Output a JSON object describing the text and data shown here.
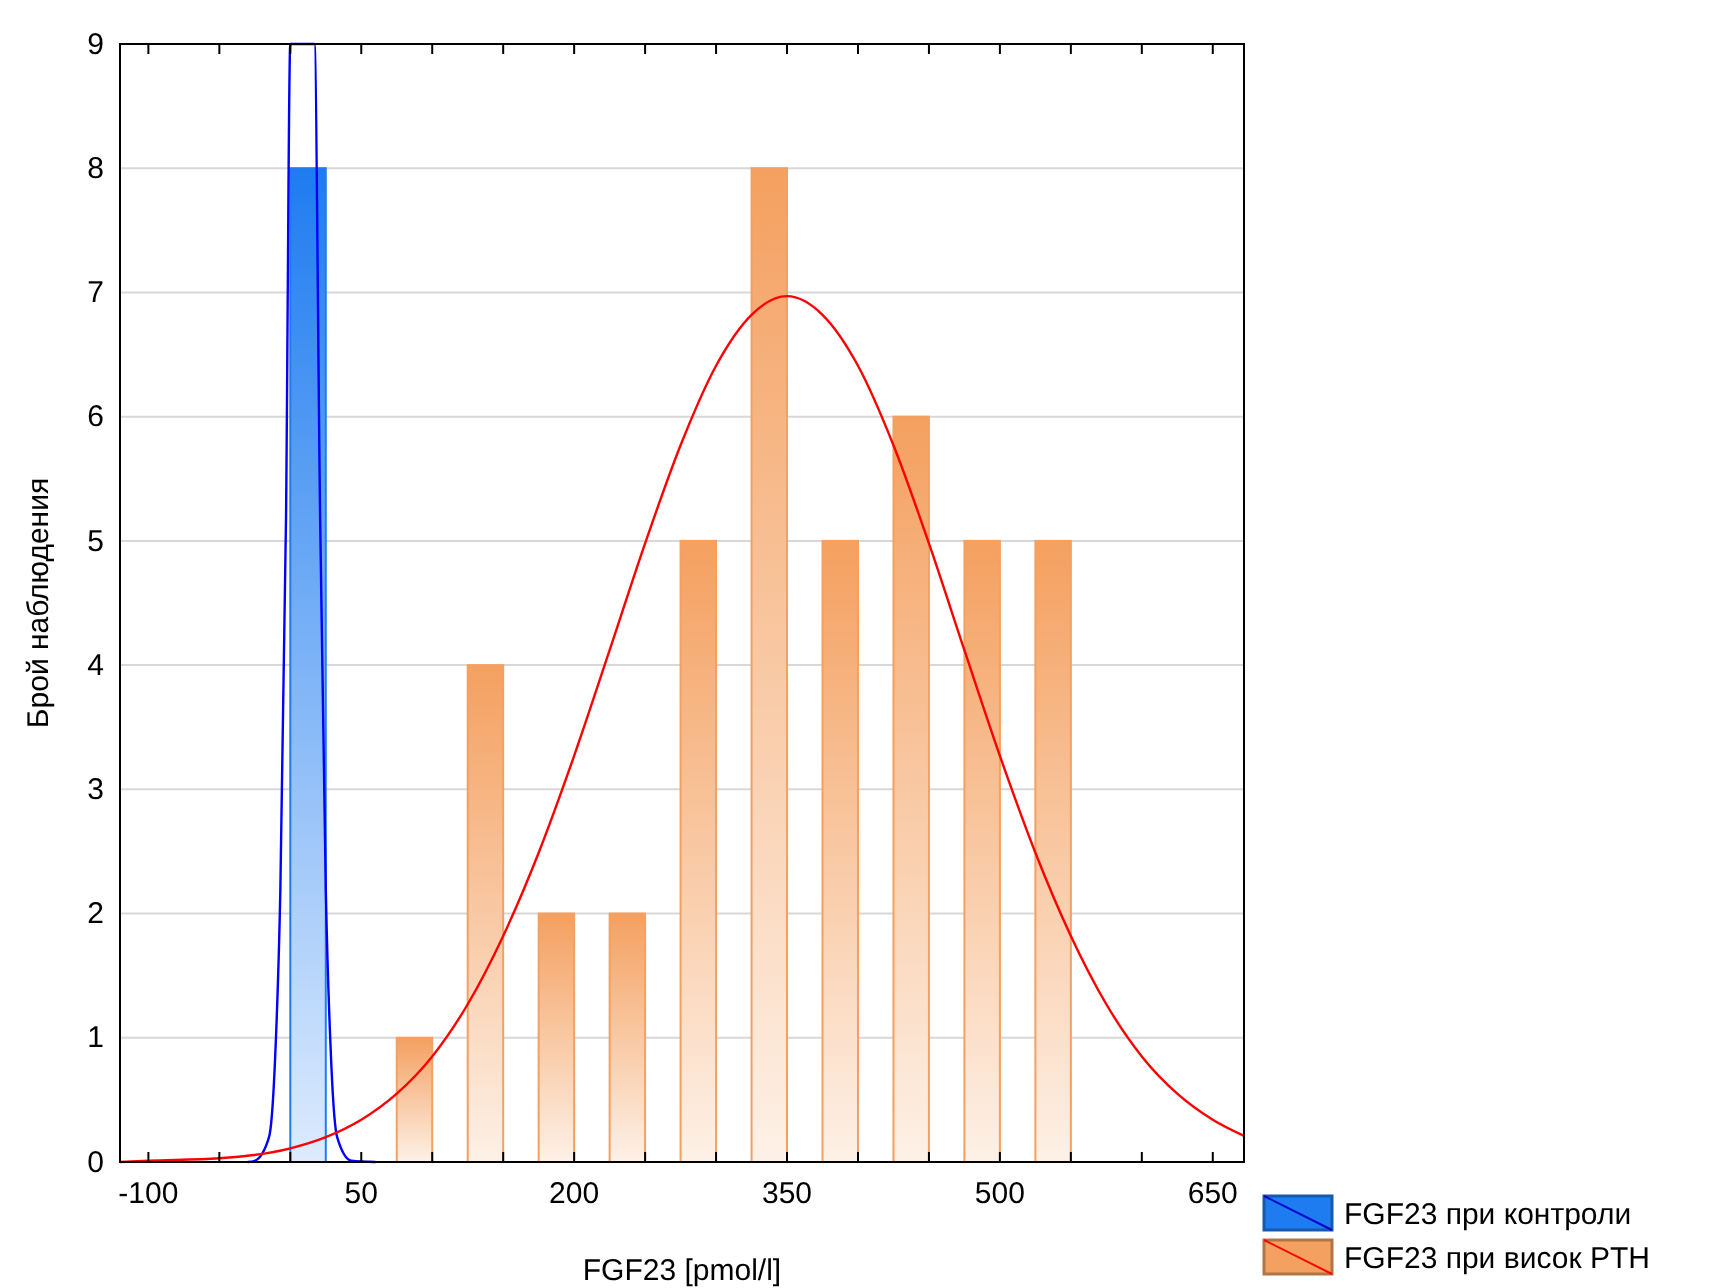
{
  "chart_data": {
    "type": "bar",
    "xlabel": "FGF23 [pmol/l]",
    "ylabel": "Брой наблюдения",
    "xlim": [
      -120,
      672
    ],
    "ylim": [
      0,
      9
    ],
    "xticks": [
      -100,
      {
        "value": -50,
        "label": null
      },
      {
        "value": 0,
        "label": null
      },
      50,
      {
        "value": 100,
        "label": null
      },
      {
        "value": 150,
        "label": null
      },
      200,
      {
        "value": 250,
        "label": null
      },
      {
        "value": 300,
        "label": null
      },
      350,
      {
        "value": 400,
        "label": null
      },
      {
        "value": 450,
        "label": null
      },
      500,
      {
        "value": 550,
        "label": null
      },
      {
        "value": 600,
        "label": null
      },
      650
    ],
    "yticks": [
      0,
      1,
      2,
      3,
      4,
      5,
      6,
      7,
      8,
      9
    ],
    "grid": "y",
    "legend": "bottom right",
    "series": [
      {
        "name": "FGF23 при контроли",
        "color": "#1e7cf0",
        "x": [
          12.5
        ],
        "values": [
          8
        ]
      },
      {
        "name": "FGF23 при висок PTH",
        "color": "#f4a060",
        "x": [
          87.5,
          137.5,
          187.5,
          237.5,
          287.5,
          337.5,
          387.5,
          437.5,
          487.5,
          537.5
        ],
        "values": [
          1,
          4,
          2,
          2,
          5,
          8,
          5,
          6,
          5,
          5
        ]
      },
      {
        "type": "line",
        "color": "#0000ff",
        "x": [
          -30,
          -25,
          -15,
          -11,
          -7,
          -3,
          0,
          17,
          21,
          25,
          29,
          33,
          43,
          60
        ],
        "values": [
          0,
          0.01,
          0.2,
          0.76,
          2.2,
          5.2,
          9,
          9,
          5.2,
          2.2,
          0.76,
          0.2,
          0.01,
          0
        ]
      },
      {
        "type": "line",
        "color": "#ff0000",
        "x": [
          -120,
          -100,
          -50,
          0,
          25,
          50,
          75,
          100,
          125,
          150,
          175,
          200,
          225,
          250,
          275,
          300,
          325,
          350,
          375,
          400,
          425,
          450,
          475,
          500,
          525,
          550,
          575,
          600,
          625,
          650,
          672
        ],
        "values": [
          0,
          0.01,
          0.03,
          0.11,
          0.2,
          0.34,
          0.55,
          0.85,
          1.27,
          1.82,
          2.49,
          3.27,
          4.12,
          4.98,
          5.77,
          6.41,
          6.82,
          6.97,
          6.82,
          6.41,
          5.77,
          4.98,
          4.12,
          3.27,
          2.49,
          1.82,
          1.27,
          0.85,
          0.55,
          0.34,
          0.21
        ]
      }
    ]
  }
}
